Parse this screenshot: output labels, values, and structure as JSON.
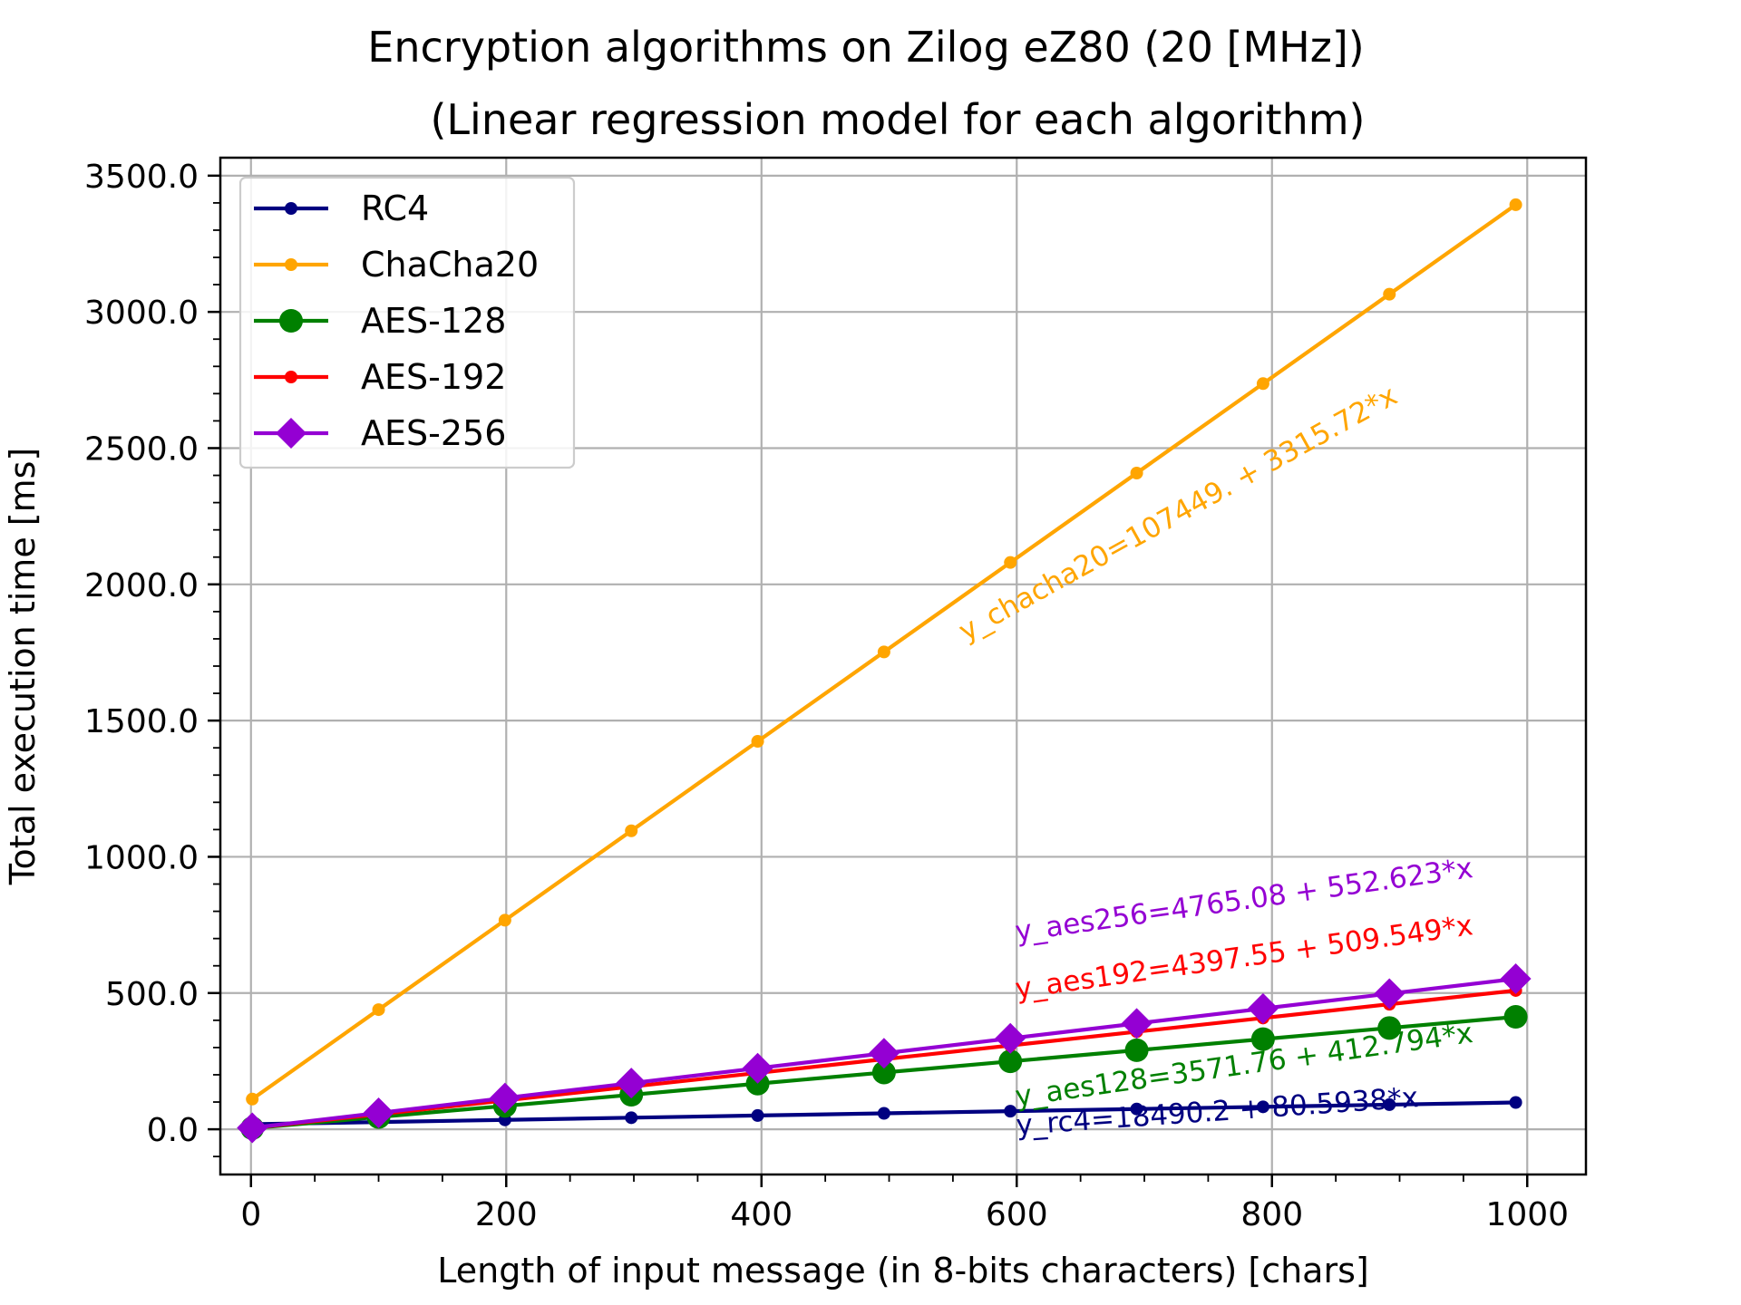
{
  "chart_data": {
    "type": "line",
    "title": "Encryption algorithms on Zilog eZ80 (20 [MHz])",
    "subtitle": "(Linear regression model for each algorithm)",
    "xlabel": "Length of input message (in 8-bits characters) [chars]",
    "ylabel": "Total execution time [ms]",
    "xlim": [
      -24,
      1046
    ],
    "ylim": [
      -166,
      3566
    ],
    "x_ticks": [
      "0",
      "200",
      "400",
      "600",
      "800",
      "1000"
    ],
    "y_ticks": [
      "0.0",
      "500.0",
      "1000.0",
      "1500.0",
      "2000.0",
      "2500.0",
      "3000.0",
      "3500.0"
    ],
    "grid": true,
    "legend_position": "top-left",
    "x": [
      1,
      100,
      199,
      298,
      397,
      496,
      595,
      694,
      793,
      892,
      991
    ],
    "series": [
      {
        "name": "RC4",
        "color": "#000080",
        "marker": "dot",
        "values": [
          18.6,
          26.5,
          34.5,
          42.5,
          50.5,
          58.5,
          66.4,
          74.4,
          82.4,
          90.4,
          98.4
        ]
      },
      {
        "name": "ChaCha20",
        "color": "#FFA500",
        "marker": "dot",
        "values": [
          110.8,
          439.0,
          767.3,
          1095.5,
          1423.8,
          1752.0,
          2080.3,
          2408.5,
          2736.8,
          3065.0,
          3393.3
        ]
      },
      {
        "name": "AES-128",
        "color": "#008000",
        "marker": "circle",
        "values": [
          4.0,
          44.9,
          85.7,
          126.6,
          167.5,
          208.3,
          249.2,
          290.1,
          330.9,
          371.8,
          412.6
        ]
      },
      {
        "name": "AES-192",
        "color": "#FF0000",
        "marker": "dot",
        "values": [
          4.9,
          54.9,
          106.0,
          156.4,
          206.7,
          257.2,
          307.5,
          358.0,
          408.3,
          458.9,
          509.3
        ]
      },
      {
        "name": "AES-256",
        "color": "#9400D3",
        "marker": "diamond",
        "values": [
          5.3,
          60.0,
          114.7,
          169.4,
          224.2,
          278.9,
          333.6,
          388.3,
          443.0,
          497.7,
          552.4
        ]
      }
    ],
    "annotations": [
      {
        "text": "y_chacha20=107449. + 3315.72*x",
        "color": "#FFA500",
        "x": 560,
        "y": 1790,
        "angle": 29
      },
      {
        "text": "y_aes256=4765.08 + 552.623*x",
        "color": "#9400D3",
        "x": 600,
        "y": 690,
        "angle": 8
      },
      {
        "text": "y_aes192=4397.55 + 509.549*x",
        "color": "#FF0000",
        "x": 600,
        "y": 480,
        "angle": 8
      },
      {
        "text": "y_aes128=3571.76 + 412.794*x",
        "color": "#008000",
        "x": 600,
        "y": 85,
        "angle": 8
      },
      {
        "text": "y_rc4=18490.2 + 80.5938*x",
        "color": "#000080",
        "x": 600,
        "y": -20,
        "angle": 4
      }
    ]
  }
}
